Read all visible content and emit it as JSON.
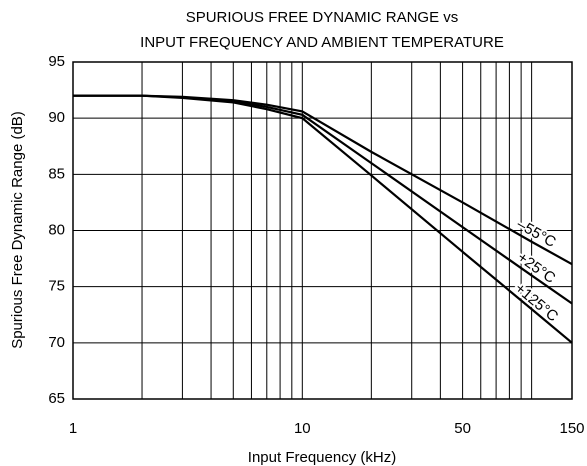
{
  "chart_data": {
    "type": "line",
    "title": [
      "SPURIOUS FREE DYNAMIC RANGE vs",
      "INPUT FREQUENCY AND AMBIENT TEMPERATURE"
    ],
    "x_label": "Input Frequency (kHz)",
    "y_label": "Spurious Free Dynamic Range (dB)",
    "x": [
      1,
      2,
      3,
      5,
      7,
      10,
      20,
      50,
      100,
      150
    ],
    "series": [
      {
        "name": "–55°C",
        "color": "#000000",
        "values": [
          92,
          92,
          91.9,
          91.6,
          91.2,
          90.6,
          87.0,
          82.5,
          79.0,
          77.0
        ]
      },
      {
        "name": "+25°C",
        "color": "#000000",
        "values": [
          92,
          92,
          91.85,
          91.5,
          91.0,
          90.3,
          86.0,
          80.3,
          76.0,
          73.5
        ]
      },
      {
        "name": "+125°C",
        "color": "#000000",
        "values": [
          92,
          92,
          91.8,
          91.4,
          90.8,
          90.0,
          84.9,
          78.1,
          73.0,
          70.0
        ]
      }
    ],
    "xlim": [
      1,
      150
    ],
    "xticks": [
      1,
      10,
      50,
      150
    ],
    "xminor": [
      2,
      3,
      4,
      5,
      6,
      7,
      8,
      9,
      20,
      30,
      40,
      60,
      70,
      80,
      90,
      100
    ],
    "x_log": true,
    "ylim": [
      65,
      95
    ],
    "yticks": [
      65,
      70,
      75,
      80,
      85,
      90,
      95
    ],
    "grid": true
  }
}
